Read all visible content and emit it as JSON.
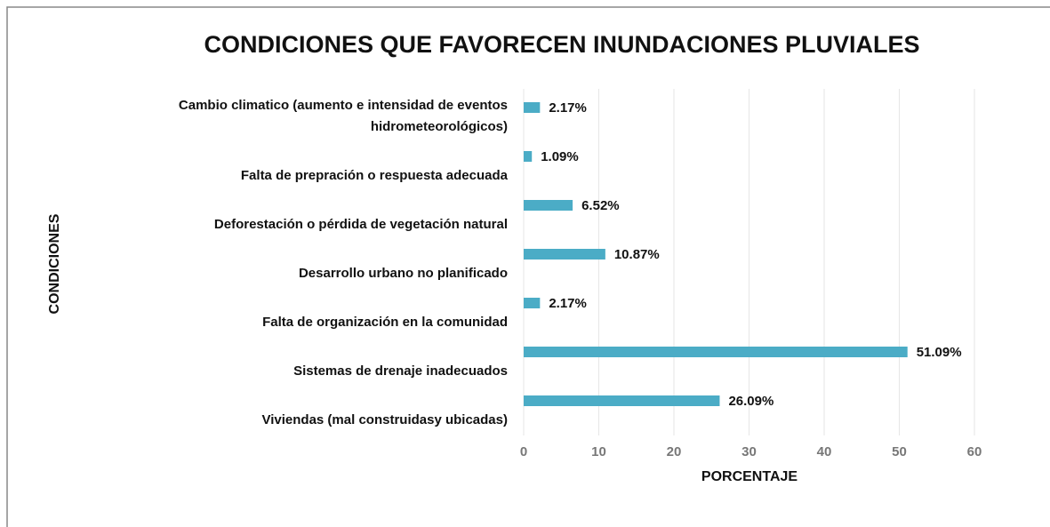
{
  "chart_data": {
    "type": "bar",
    "orientation": "horizontal",
    "title": "CONDICIONES QUE FAVORECEN INUNDACIONES PLUVIALES",
    "x_label": "PORCENTAJE",
    "y_label": "CONDICIONES",
    "categories": [
      "Cambio climatico (aumento e intensidad de eventos\nhidrometeorológicos)",
      "Falta de prepración o respuesta adecuada",
      "Deforestación o pérdida de vegetación natural",
      "Desarrollo urbano no planificado",
      "Falta de organización en la comunidad",
      "Sistemas de drenaje inadecuados",
      "Viviendas (mal construidasy ubicadas)"
    ],
    "values": [
      2.17,
      1.09,
      6.52,
      10.87,
      2.17,
      51.09,
      26.09
    ],
    "value_labels": [
      "2.17%",
      "1.09%",
      "6.52%",
      "10.87%",
      "2.17%",
      "51.09%",
      "26.09%"
    ],
    "color": "#4bacc6",
    "xlim": [
      0,
      60
    ],
    "xticks": [
      0,
      10,
      20,
      30,
      40,
      50,
      60
    ],
    "grid": true
  }
}
